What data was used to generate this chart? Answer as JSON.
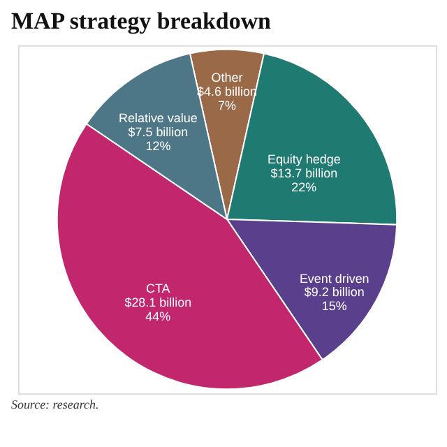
{
  "chart_data": {
    "type": "pie",
    "title": "MAP strategy breakdown",
    "categories": [
      "Other",
      "Equity hedge",
      "Event driven",
      "CTA",
      "Relative value"
    ],
    "values": [
      7,
      22,
      15,
      44,
      12
    ],
    "value_labels": [
      "$4.6 billion\n7%",
      "$13.7 billion\n22%",
      "$9.2 billion\n15%",
      "$28.1 billion\n44%",
      "$7.5 billion\n12%"
    ],
    "colors": [
      "#9a6a48",
      "#1f7a72",
      "#5a3f8d",
      "#c2266d",
      "#4d7787"
    ],
    "annotations": [
      "Source: research."
    ],
    "legend": false
  }
}
